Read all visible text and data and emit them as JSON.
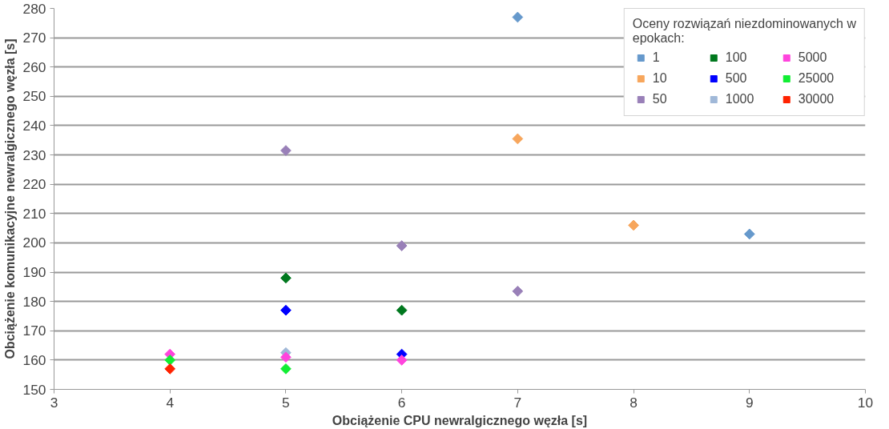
{
  "chart_data": {
    "type": "scatter",
    "xlabel": "Obciążenie CPU newralgicznego węzła [s]",
    "ylabel": "Obciążenie komunikacyjne newralgicznego węzła [s]",
    "legend_title": "Oceny rozwiązań niezdominowanych w epokach:",
    "legend": "top right",
    "marker": "diamond",
    "grid": "y",
    "xlim": [
      3,
      10
    ],
    "xticks": [
      3,
      4,
      5,
      6,
      7,
      8,
      9,
      10
    ],
    "ylim": [
      150,
      280
    ],
    "yticks": [
      150,
      160,
      170,
      180,
      190,
      200,
      210,
      220,
      230,
      240,
      250,
      260,
      270,
      280
    ],
    "series": [
      {
        "name": "1",
        "color": "#6699cc",
        "x": [
          7,
          9
        ],
        "values": [
          277,
          203
        ]
      },
      {
        "name": "10",
        "color": "#f7a65c",
        "x": [
          7,
          8
        ],
        "values": [
          235.5,
          206
        ]
      },
      {
        "name": "50",
        "color": "#9980b8",
        "x": [
          5,
          6,
          7
        ],
        "values": [
          231.5,
          199,
          183.5
        ]
      },
      {
        "name": "100",
        "color": "#00781e",
        "x": [
          5,
          6
        ],
        "values": [
          188,
          177
        ]
      },
      {
        "name": "500",
        "color": "#0000ff",
        "x": [
          5,
          6
        ],
        "values": [
          177,
          162
        ]
      },
      {
        "name": "1000",
        "color": "#a0b8d8",
        "x": [
          5
        ],
        "values": [
          162.5
        ]
      },
      {
        "name": "5000",
        "color": "#ff44dd",
        "x": [
          4,
          5,
          6
        ],
        "values": [
          162,
          161,
          160
        ]
      },
      {
        "name": "25000",
        "color": "#11ee33",
        "x": [
          4,
          5
        ],
        "values": [
          160,
          157
        ]
      },
      {
        "name": "30000",
        "color": "#ff2200",
        "x": [
          4
        ],
        "values": [
          157
        ]
      }
    ]
  }
}
